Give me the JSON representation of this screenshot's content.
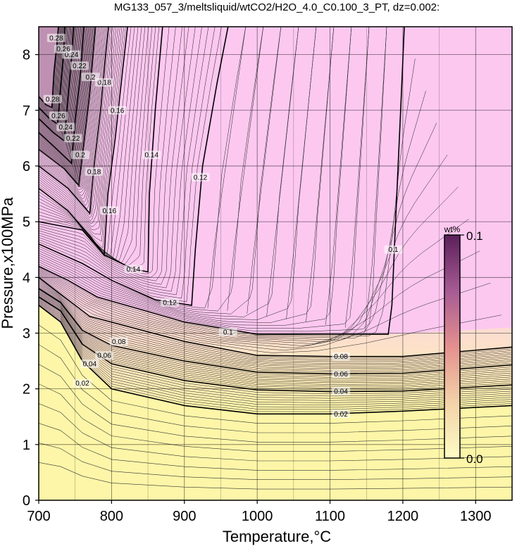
{
  "chart_data": {
    "type": "contour",
    "title": "MG133_057_3/meltsliquid/wtCO2/H2O_4.0_C0.100_3_PT, dz=0.002:",
    "xlabel": "Temperature,°C",
    "ylabel": "Pressure,x100MPa",
    "xlim": [
      700,
      1350
    ],
    "ylim": [
      0,
      8.5
    ],
    "x_ticks": [
      "700",
      "800",
      "900",
      "1000",
      "1100",
      "1200",
      "1300"
    ],
    "y_ticks": [
      "0",
      "1",
      "2",
      "3",
      "4",
      "5",
      "6",
      "7",
      "8"
    ],
    "grid": true,
    "contour_interval": 0.002,
    "colorbar": {
      "unit": "wt%",
      "min_label": "0.0",
      "max_label": "0.1",
      "range": [
        0.0,
        0.1
      ],
      "colors": [
        "#fefcc4",
        "#f3d2a8",
        "#e4908e",
        "#a75a94",
        "#5b1f5a"
      ],
      "placement": "right-inside"
    },
    "plateau_color": "#fcc8f0",
    "low_color": "#fdf6a8",
    "contours": [
      {
        "level": 0.02,
        "label": "0.02",
        "points": [
          [
            700,
            3.5
          ],
          [
            730,
            3.2
          ],
          [
            760,
            2.5
          ],
          [
            800,
            2.0
          ],
          [
            900,
            1.7
          ],
          [
            1000,
            1.55
          ],
          [
            1100,
            1.55
          ],
          [
            1200,
            1.6
          ],
          [
            1350,
            1.7
          ]
        ]
      },
      {
        "level": 0.04,
        "label": "0.04",
        "points": [
          [
            700,
            3.65
          ],
          [
            730,
            3.4
          ],
          [
            760,
            2.8
          ],
          [
            800,
            2.45
          ],
          [
            900,
            2.15
          ],
          [
            1000,
            1.98
          ],
          [
            1100,
            1.95
          ],
          [
            1200,
            1.96
          ],
          [
            1350,
            2.07
          ]
        ]
      },
      {
        "level": 0.06,
        "label": "0.06",
        "points": [
          [
            700,
            3.8
          ],
          [
            730,
            3.55
          ],
          [
            760,
            3.05
          ],
          [
            800,
            2.78
          ],
          [
            900,
            2.5
          ],
          [
            1000,
            2.3
          ],
          [
            1100,
            2.27
          ],
          [
            1200,
            2.28
          ],
          [
            1350,
            2.43
          ]
        ]
      },
      {
        "level": 0.08,
        "label": "0.08",
        "points": [
          [
            700,
            4.0
          ],
          [
            730,
            3.7
          ],
          [
            770,
            3.3
          ],
          [
            900,
            2.85
          ],
          [
            1000,
            2.6
          ],
          [
            1100,
            2.58
          ],
          [
            1200,
            2.58
          ],
          [
            1350,
            2.75
          ]
        ]
      },
      {
        "level": 0.1,
        "label": "0.1",
        "points": [
          [
            700,
            4.2
          ],
          [
            740,
            3.95
          ],
          [
            780,
            3.65
          ],
          [
            900,
            3.2
          ],
          [
            1000,
            2.98
          ],
          [
            1180,
            2.98
          ],
          [
            1185,
            3.5
          ],
          [
            1190,
            5.0
          ],
          [
            1197,
            7.0
          ],
          [
            1202,
            8.5
          ]
        ]
      },
      {
        "level": 0.12,
        "label": "0.12",
        "points": [
          [
            700,
            4.6
          ],
          [
            760,
            4.25
          ],
          [
            800,
            3.95
          ],
          [
            860,
            3.6
          ],
          [
            910,
            3.5
          ],
          [
            915,
            4.5
          ],
          [
            925,
            6.0
          ],
          [
            945,
            7.5
          ],
          [
            960,
            8.5
          ]
        ]
      },
      {
        "level": 0.14,
        "label": "0.14",
        "points": [
          [
            700,
            5.0
          ],
          [
            760,
            4.85
          ],
          [
            790,
            4.4
          ],
          [
            830,
            4.15
          ],
          [
            850,
            4.1
          ],
          [
            852,
            5.5
          ],
          [
            860,
            7.0
          ],
          [
            870,
            8.5
          ]
        ]
      },
      {
        "level": 0.16,
        "label": "0.16",
        "points": [
          [
            700,
            5.6
          ],
          [
            740,
            5.2
          ],
          [
            770,
            4.75
          ],
          [
            790,
            4.4
          ],
          [
            795,
            5.5
          ],
          [
            805,
            6.5
          ],
          [
            815,
            7.7
          ],
          [
            822,
            8.5
          ]
        ]
      },
      {
        "level": 0.18,
        "label": "0.18",
        "points": [
          [
            700,
            6.0
          ],
          [
            740,
            5.6
          ],
          [
            770,
            5.15
          ],
          [
            776,
            6.0
          ],
          [
            785,
            7.0
          ],
          [
            792,
            8.0
          ],
          [
            796,
            8.5
          ]
        ]
      },
      {
        "level": 0.2,
        "label": "0.2",
        "points": [
          [
            700,
            6.3
          ],
          [
            735,
            5.95
          ],
          [
            755,
            5.65
          ],
          [
            762,
            6.4
          ],
          [
            770,
            7.3
          ],
          [
            778,
            8.5
          ]
        ]
      },
      {
        "level": 0.22,
        "label": "0.22",
        "points": [
          [
            700,
            6.6
          ],
          [
            725,
            6.3
          ],
          [
            745,
            6.05
          ],
          [
            750,
            6.8
          ],
          [
            757,
            7.6
          ],
          [
            762,
            8.5
          ]
        ]
      },
      {
        "level": 0.24,
        "label": "0.24",
        "points": [
          [
            700,
            6.85
          ],
          [
            720,
            6.6
          ],
          [
            735,
            6.45
          ],
          [
            740,
            7.2
          ],
          [
            745,
            7.9
          ],
          [
            748,
            8.5
          ]
        ]
      },
      {
        "level": 0.26,
        "label": "0.26",
        "points": [
          [
            700,
            7.05
          ],
          [
            715,
            6.85
          ],
          [
            726,
            6.75
          ],
          [
            730,
            7.4
          ],
          [
            734,
            8.0
          ],
          [
            736,
            8.5
          ]
        ]
      },
      {
        "level": 0.28,
        "label": "0.28",
        "points": [
          [
            700,
            7.25
          ],
          [
            710,
            7.1
          ],
          [
            718,
            7.05
          ],
          [
            721,
            7.7
          ],
          [
            725,
            8.2
          ],
          [
            727,
            8.5
          ]
        ]
      }
    ]
  }
}
